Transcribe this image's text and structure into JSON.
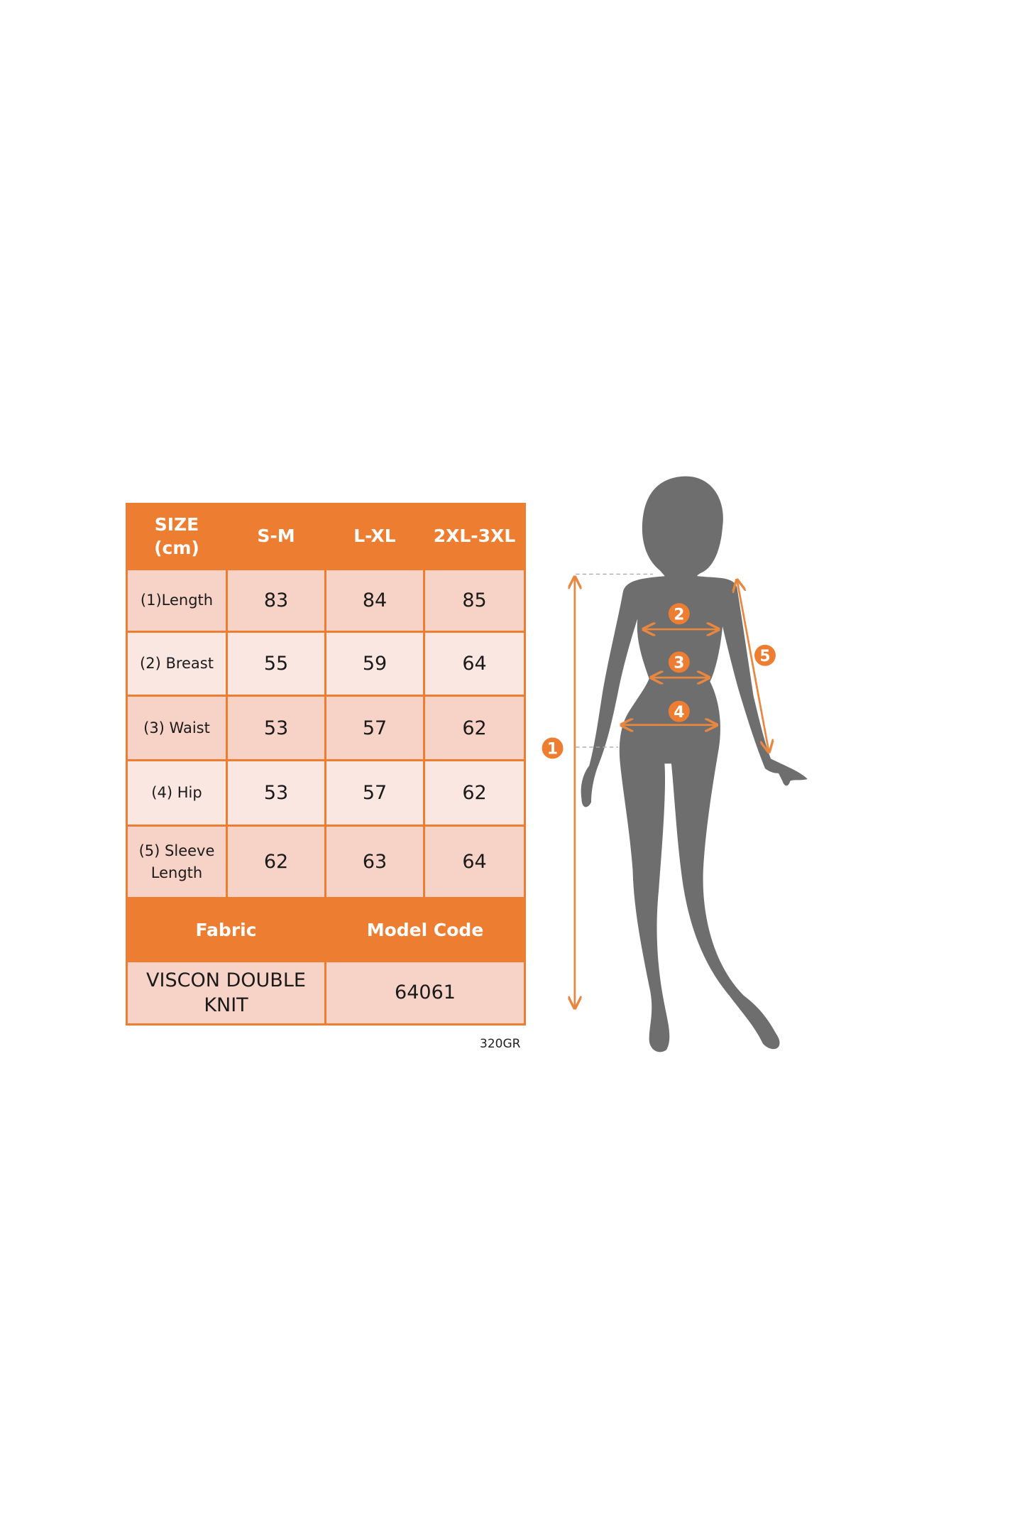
{
  "colors": {
    "accent": "#ED7D31",
    "cell_dark": "#F7D3C7",
    "cell_light": "#FBE7E1",
    "silhouette": "#6E6E6E"
  },
  "table": {
    "header": {
      "size_label_1": "SIZE",
      "size_label_2": "(cm)",
      "sizes": [
        "S-M",
        "L-XL",
        "2XL-3XL"
      ]
    },
    "rows": [
      {
        "label": "(1)Length",
        "values": [
          "83",
          "84",
          "85"
        ]
      },
      {
        "label": "(2) Breast",
        "values": [
          "55",
          "59",
          "64"
        ]
      },
      {
        "label": "(3) Waist",
        "values": [
          "53",
          "57",
          "62"
        ]
      },
      {
        "label": "(4) Hip",
        "values": [
          "53",
          "57",
          "62"
        ]
      },
      {
        "label_1": "(5) Sleeve",
        "label_2": "Length",
        "values": [
          "62",
          "63",
          "64"
        ]
      }
    ],
    "fabric_header": "Fabric",
    "model_code_header": "Model Code",
    "fabric_line_1": "VISCON DOUBLE",
    "fabric_line_2": "KNIT",
    "model_code": "64061"
  },
  "note": "320GR",
  "figure": {
    "markers": [
      "1",
      "2",
      "3",
      "4",
      "5"
    ]
  }
}
